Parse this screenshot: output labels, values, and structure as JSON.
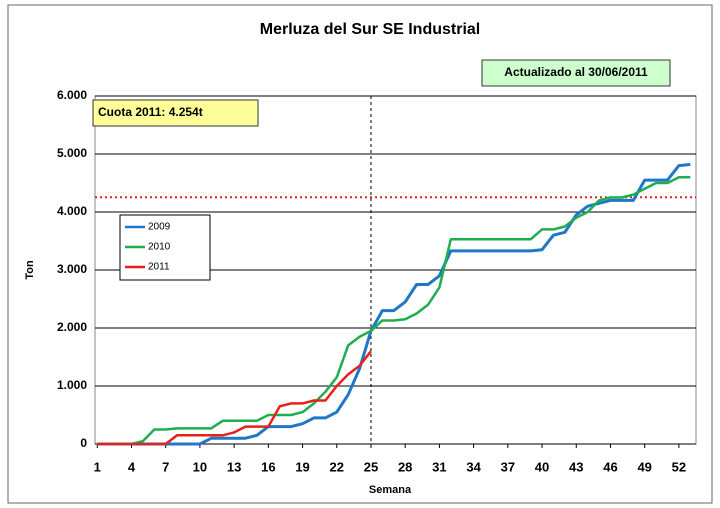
{
  "chart_data": {
    "type": "line",
    "title": "Merluza del Sur SE Industrial",
    "updated": "Actualizado al 30/06/2011",
    "quota_label": "Cuota 2011: 4.254t",
    "quota": 4254,
    "current_week": 25,
    "xlabel": "Semana",
    "ylabel": "Ton",
    "legend": "upper left",
    "grid": true,
    "x": [
      1,
      2,
      3,
      4,
      5,
      6,
      7,
      8,
      9,
      10,
      11,
      12,
      13,
      14,
      15,
      16,
      17,
      18,
      19,
      20,
      21,
      22,
      23,
      24,
      25,
      26,
      27,
      28,
      29,
      30,
      31,
      32,
      33,
      34,
      35,
      36,
      37,
      38,
      39,
      40,
      41,
      42,
      43,
      44,
      45,
      46,
      47,
      48,
      49,
      50,
      51,
      52,
      53
    ],
    "xlim": [
      0.8,
      53.5
    ],
    "xticks": [
      1,
      4,
      7,
      10,
      13,
      16,
      19,
      22,
      25,
      28,
      31,
      34,
      37,
      40,
      43,
      46,
      49,
      52
    ],
    "ylim": [
      0,
      6000
    ],
    "yticks": [
      0,
      {
        "value": 1000,
        "label": "1.000"
      },
      {
        "value": 2000,
        "label": "2.000"
      },
      {
        "value": 3000,
        "label": "3.000"
      },
      {
        "value": 4000,
        "label": "4.000"
      },
      {
        "value": 5000,
        "label": "5.000"
      },
      {
        "value": 6000,
        "label": "6.000"
      }
    ],
    "series": [
      {
        "name": "2009",
        "color": "#1f77c8",
        "values": [
          0,
          0,
          0,
          0,
          0,
          0,
          0,
          0,
          0,
          0,
          100,
          100,
          100,
          100,
          150,
          300,
          300,
          300,
          350,
          450,
          450,
          550,
          850,
          1300,
          1950,
          2300,
          2300,
          2450,
          2750,
          2750,
          2900,
          3330,
          3330,
          3330,
          3330,
          3330,
          3330,
          3330,
          3330,
          3350,
          3600,
          3650,
          3950,
          4100,
          4150,
          4200,
          4200,
          4200,
          4550,
          4550,
          4550,
          4800,
          4820
        ]
      },
      {
        "name": "2010",
        "color": "#1fae4f",
        "values": [
          0,
          0,
          0,
          0,
          50,
          250,
          250,
          270,
          270,
          270,
          270,
          400,
          400,
          400,
          400,
          500,
          500,
          500,
          550,
          700,
          900,
          1150,
          1700,
          1850,
          1950,
          2130,
          2130,
          2150,
          2250,
          2400,
          2700,
          3530,
          3530,
          3530,
          3530,
          3530,
          3530,
          3530,
          3530,
          3700,
          3700,
          3750,
          3900,
          4000,
          4200,
          4250,
          4250,
          4300,
          4400,
          4500,
          4500,
          4600,
          4600
        ]
      },
      {
        "name": "2011",
        "color": "#e8201c",
        "values": [
          0,
          0,
          0,
          0,
          0,
          0,
          0,
          150,
          150,
          150,
          150,
          150,
          200,
          300,
          300,
          300,
          650,
          700,
          700,
          750,
          750,
          1000,
          1200,
          1350,
          1600,
          null,
          null,
          null,
          null,
          null,
          null,
          null,
          null,
          null,
          null,
          null,
          null,
          null,
          null,
          null,
          null,
          null,
          null,
          null,
          null,
          null,
          null,
          null,
          null,
          null,
          null,
          null,
          null
        ]
      }
    ]
  }
}
